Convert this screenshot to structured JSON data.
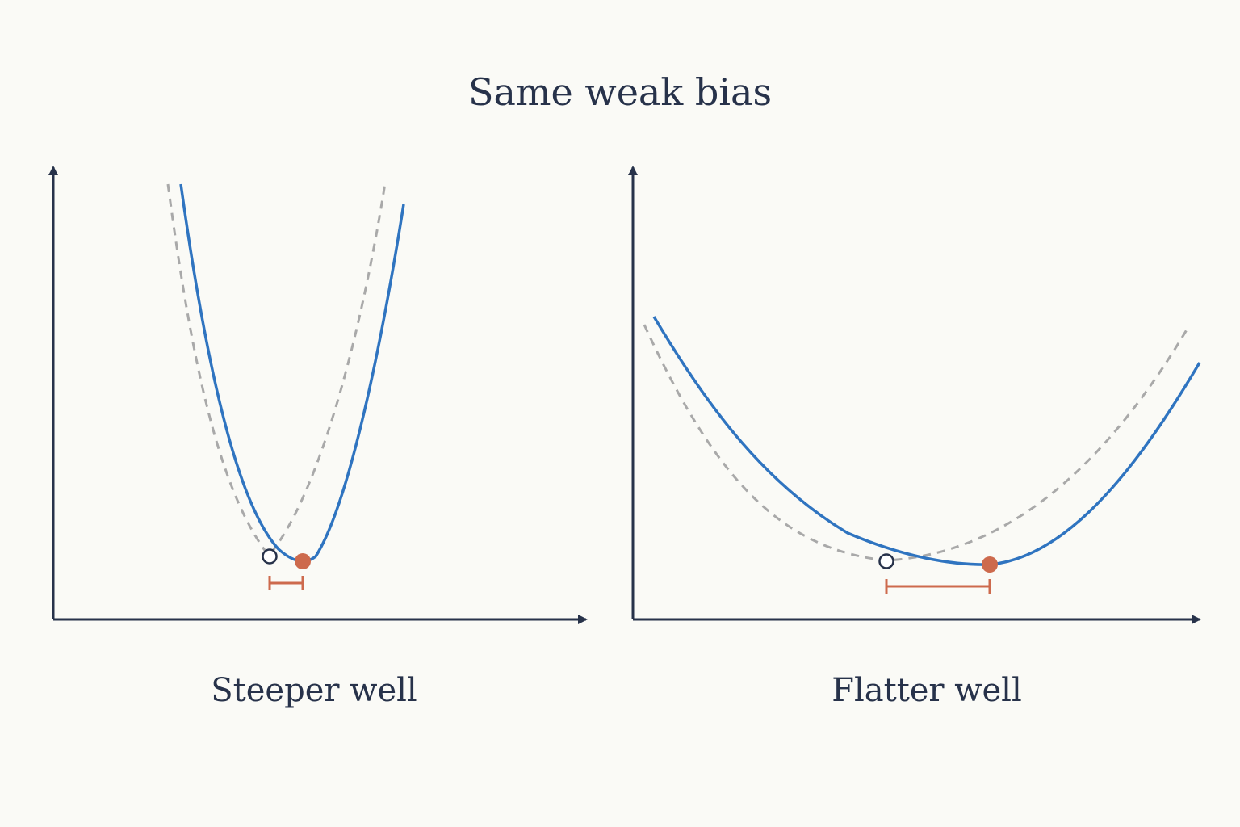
{
  "title": "Same weak bias",
  "colors": {
    "background": "#fafaf6",
    "text": "#27324a",
    "axis": "#27324a",
    "biased_curve": "#2f74c0",
    "original_curve": "#a9a9a9",
    "biased_minimum": "#cd6a4d",
    "shift_bar": "#cd6a4d",
    "original_minimum_fill": "#ffffff"
  },
  "panels": [
    {
      "caption": "Steeper well",
      "curvature": "steep",
      "icons": {
        "original_curve": "dashed-parabola",
        "biased_curve": "solid-parabola",
        "original_minimum": "hollow-circle-marker",
        "biased_minimum": "filled-circle-marker",
        "shift": "small-bracket"
      }
    },
    {
      "caption": "Flatter well",
      "curvature": "flat",
      "icons": {
        "original_curve": "dashed-parabola",
        "biased_curve": "solid-parabola",
        "original_minimum": "hollow-circle-marker",
        "biased_minimum": "filled-circle-marker",
        "shift": "large-bracket"
      }
    }
  ]
}
